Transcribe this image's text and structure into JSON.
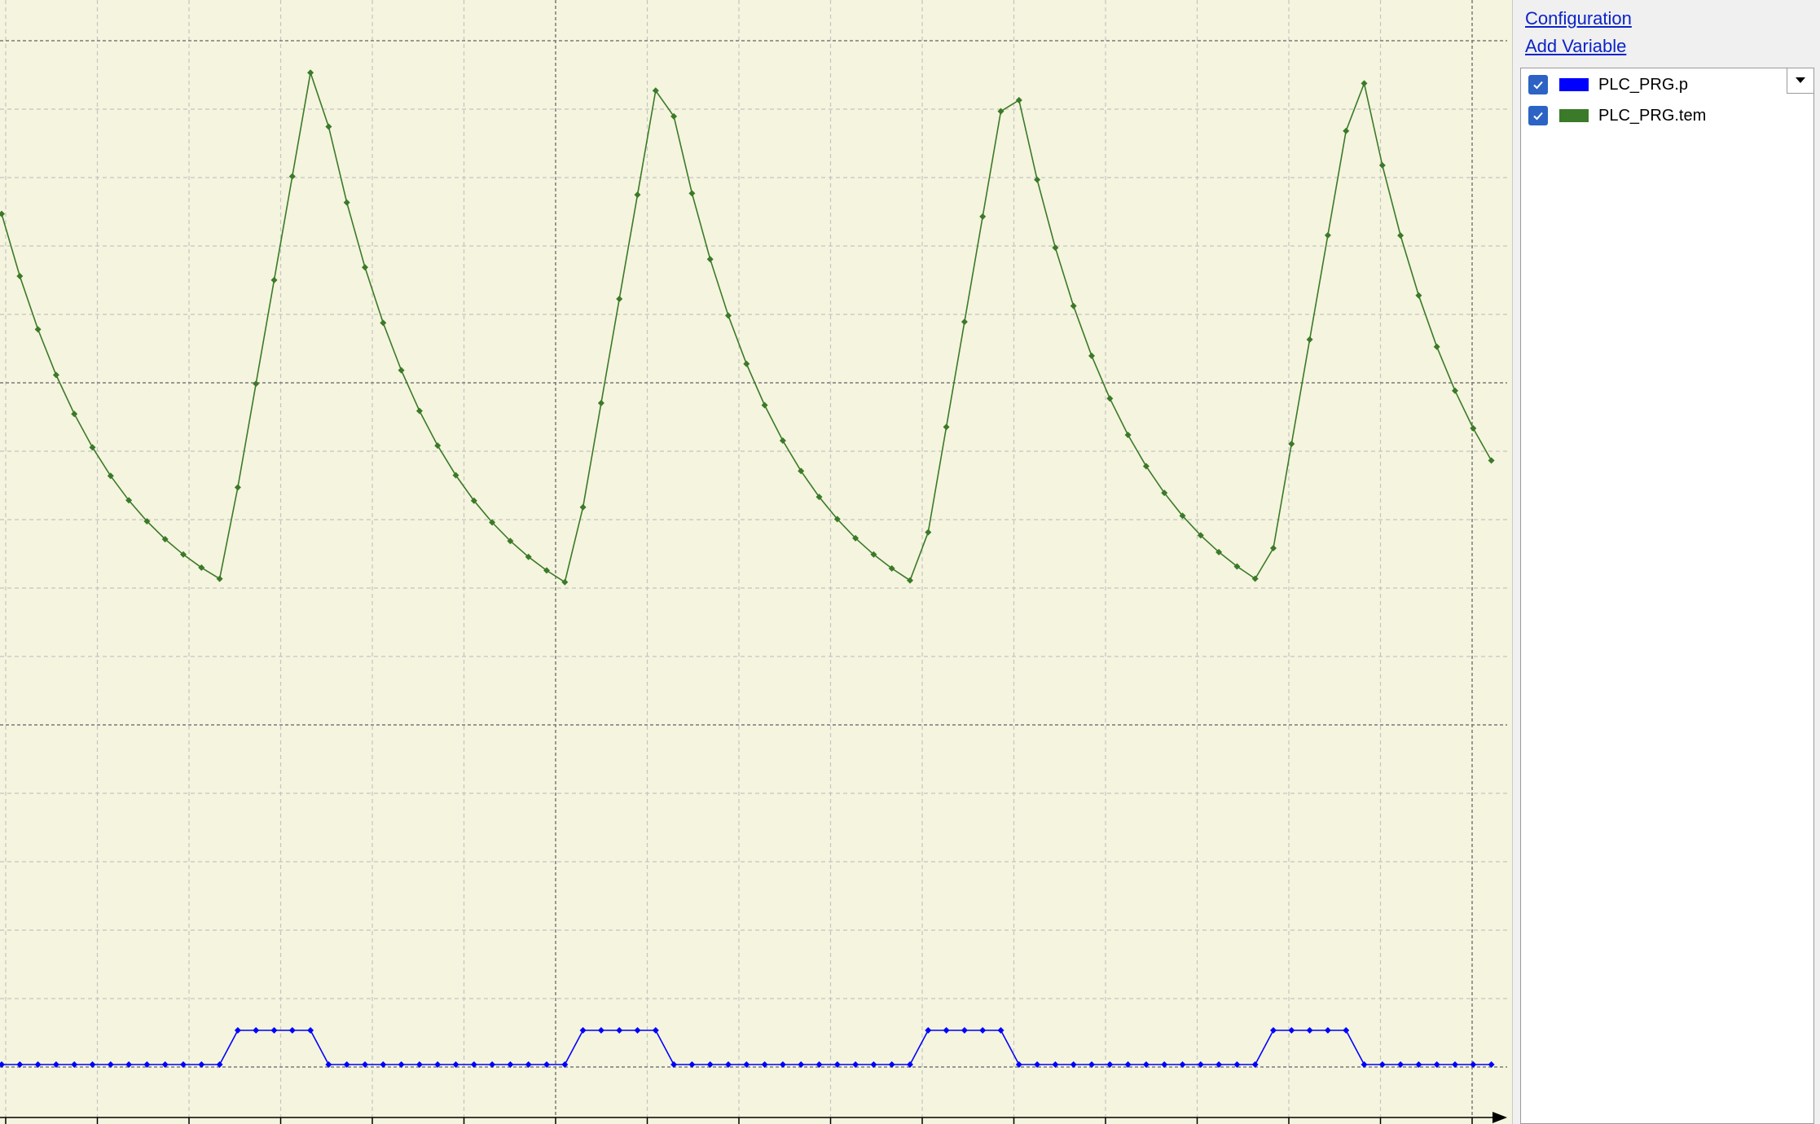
{
  "panel": {
    "configuration_link": "Configuration",
    "add_variable_link": "Add Variable",
    "variables": [
      {
        "name": "PLC_PRG.p",
        "checked": true,
        "color": "#0000ff"
      },
      {
        "name": "PLC_PRG.tem",
        "checked": true,
        "color": "#3a7a28"
      }
    ]
  },
  "colors": {
    "plot_background": "#f5f4de",
    "grid_minor": "#c4c4c4",
    "grid_major": "#7a7a7a",
    "tem_series": "#3a7a28",
    "p_series": "#0000ff",
    "checkbox": "#2c63c4"
  },
  "icons": {
    "checkbox": "checkmark-icon",
    "dropdown": "chevron-down-icon",
    "axis_end": "arrow-right-icon"
  },
  "chart_data": {
    "type": "line",
    "grid": true,
    "x_ticks_visible": 17,
    "series": [
      {
        "name": "PLC_PRG.tem",
        "color": "#3a7a28",
        "pattern": "sawtooth: sharp rise followed by exponential decay, 4 cycles visible",
        "peaks_visible": 4,
        "troughs_visible": 4
      },
      {
        "name": "PLC_PRG.p",
        "color": "#0000ff",
        "pattern": "binary pulses (0/1) coinciding with rising edges of PLC_PRG.tem",
        "values_range": [
          0,
          1
        ],
        "pulses_visible": 4
      }
    ]
  }
}
